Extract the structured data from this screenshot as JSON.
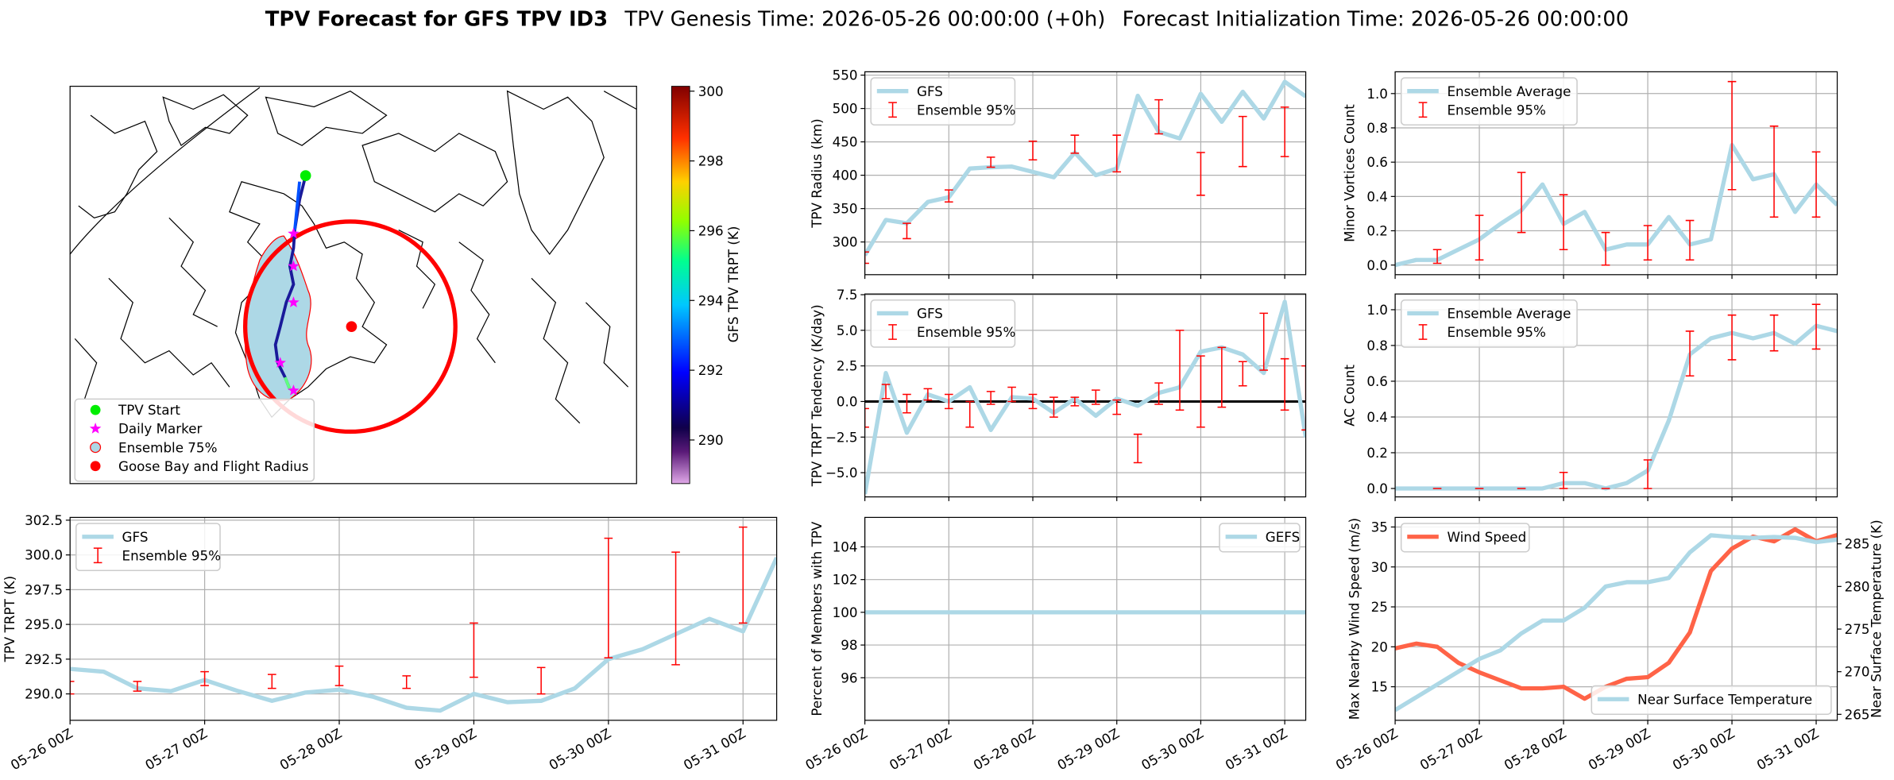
{
  "title": {
    "main": "TPV Forecast for GFS TPV ID3",
    "genesis": "TPV Genesis Time: 2026-05-26 00:00:00 (+0h)",
    "init": "Forecast Initialization Time: 2026-05-26 00:00:00"
  },
  "chart_data": [
    {
      "type": "map",
      "legend": "lower left",
      "items": [
        {
          "name": "TPV Start",
          "marker": "circle",
          "color": "#00ee00"
        },
        {
          "name": "Daily Marker",
          "marker": "star",
          "color": "#ff00ff"
        },
        {
          "name": "Ensemble 75%",
          "marker": "circle",
          "color": "#add8e6",
          "edgecolor": "#ff0000"
        },
        {
          "name": "Goose Bay and Flight Radius",
          "marker": "circle",
          "color": "#ff0000"
        }
      ],
      "colorbar": {
        "label": "GFS TPV TRPT (K)",
        "lim": [
          288.75,
          300.14
        ],
        "ticks": [
          290,
          292,
          294,
          296,
          298,
          300
        ]
      }
    },
    {
      "type": "line",
      "ylabel": "TPV Radius (km)",
      "grid": true,
      "legend": "upper left",
      "x": [
        0,
        6,
        12,
        18,
        24,
        30,
        36,
        42,
        48,
        54,
        60,
        66,
        72,
        78,
        84,
        90,
        96,
        102,
        108,
        114,
        120,
        126
      ],
      "xlim": [
        0,
        126
      ],
      "xticks": [
        0,
        24,
        48,
        72,
        96,
        120
      ],
      "ylim": [
        251,
        555
      ],
      "yticks": [
        300,
        350,
        400,
        450,
        500,
        550
      ],
      "series": [
        {
          "name": "GFS",
          "color": "#add8e6",
          "values": [
            280,
            333,
            328,
            360,
            367,
            410,
            412,
            413,
            405,
            397,
            434,
            400,
            410,
            519,
            465,
            455,
            522,
            480,
            525,
            485,
            540,
            518
          ]
        }
      ],
      "errorbars": {
        "name": "Ensemble 95%",
        "color": "#ff0000",
        "x": [
          0,
          12,
          24,
          36,
          48,
          60,
          72,
          84,
          96,
          108,
          120
        ],
        "low": [
          268,
          305,
          360,
          412,
          423,
          433,
          405,
          462,
          370,
          413,
          428
        ],
        "high": [
          285,
          328,
          378,
          427,
          451,
          460,
          460,
          513,
          434,
          488,
          502
        ]
      }
    },
    {
      "type": "line",
      "ylabel": "Minor Vortices Count",
      "grid": true,
      "legend": "upper left",
      "x": [
        0,
        6,
        12,
        18,
        24,
        30,
        36,
        42,
        48,
        54,
        60,
        66,
        72,
        78,
        84,
        90,
        96,
        102,
        108,
        114,
        120,
        126
      ],
      "xlim": [
        0,
        126
      ],
      "xticks": [
        0,
        24,
        48,
        72,
        96,
        120
      ],
      "ylim": [
        -0.056,
        1.127
      ],
      "yticks": [
        {
          "value": 0,
          "label": "0.0"
        },
        0.2,
        0.4,
        0.6,
        0.8,
        {
          "value": 1,
          "label": "1.0"
        }
      ],
      "series": [
        {
          "name": "Ensemble Average",
          "color": "#add8e6",
          "values": [
            0.0,
            0.03,
            0.03,
            0.09,
            0.15,
            0.24,
            0.32,
            0.47,
            0.24,
            0.31,
            0.09,
            0.12,
            0.12,
            0.28,
            0.12,
            0.15,
            0.7,
            0.5,
            0.53,
            0.31,
            0.47,
            0.35
          ]
        }
      ],
      "errorbars": {
        "name": "Ensemble 95%",
        "color": "#ff0000",
        "x": [
          12,
          24,
          36,
          48,
          60,
          72,
          84,
          96,
          108,
          120
        ],
        "low": [
          0.01,
          0.03,
          0.19,
          0.09,
          0.0,
          0.03,
          0.03,
          0.44,
          0.28,
          0.28
        ],
        "high": [
          0.09,
          0.29,
          0.54,
          0.41,
          0.19,
          0.23,
          0.26,
          1.07,
          0.81,
          0.66
        ]
      }
    },
    {
      "type": "line",
      "ylabel": "TPV TRPT Tendency (K/day)",
      "grid": true,
      "legend": "upper left",
      "hline": 0,
      "x": [
        0,
        6,
        12,
        18,
        24,
        30,
        36,
        42,
        48,
        54,
        60,
        66,
        72,
        78,
        84,
        90,
        96,
        102,
        108,
        114,
        120,
        126
      ],
      "xlim": [
        0,
        126
      ],
      "xticks": [
        0,
        24,
        48,
        72,
        96,
        120
      ],
      "ylim": [
        -6.7,
        7.55
      ],
      "yticks": [
        {
          "value": -5,
          "label": "−5.0"
        },
        {
          "value": -2.5,
          "label": "−2.5"
        },
        {
          "value": 0,
          "label": "0.0"
        },
        2.5,
        {
          "value": 5,
          "label": "5.0"
        },
        7.5
      ],
      "series": [
        {
          "name": "GFS",
          "color": "#add8e6",
          "values": [
            -6.5,
            2.0,
            -2.2,
            0.5,
            0.0,
            1.0,
            -2.0,
            0.3,
            0.2,
            -0.8,
            0.2,
            -1.0,
            0.2,
            -0.3,
            0.6,
            1.0,
            3.5,
            3.8,
            3.3,
            2.0,
            7.0,
            -2.5
          ]
        }
      ],
      "errorbars": {
        "name": "Ensemble 95%",
        "color": "#ff0000",
        "x": [
          0,
          6,
          12,
          18,
          24,
          30,
          36,
          42,
          48,
          54,
          60,
          66,
          72,
          78,
          84,
          90,
          96,
          102,
          108,
          114,
          120,
          126
        ],
        "low": [
          -1.8,
          0.2,
          -0.8,
          0.1,
          -0.5,
          -1.8,
          -0.2,
          0.0,
          -0.5,
          -1.1,
          -0.3,
          -0.2,
          -0.9,
          -4.3,
          -0.2,
          -0.6,
          -1.8,
          -0.4,
          1.1,
          2.2,
          -0.6,
          -2.0
        ],
        "high": [
          -0.5,
          1.2,
          0.5,
          0.9,
          0.5,
          0.0,
          0.7,
          1.0,
          0.5,
          0.3,
          0.3,
          0.8,
          0.1,
          -2.3,
          1.3,
          5.0,
          3.2,
          3.8,
          2.8,
          6.2,
          3.0,
          2.5
        ]
      }
    },
    {
      "type": "line",
      "ylabel": "AC Count",
      "grid": true,
      "legend": "upper left",
      "x": [
        0,
        6,
        12,
        18,
        24,
        30,
        36,
        42,
        48,
        54,
        60,
        66,
        72,
        78,
        84,
        90,
        96,
        102,
        108,
        114,
        120,
        126
      ],
      "xlim": [
        0,
        126
      ],
      "xticks": [
        0,
        24,
        48,
        72,
        96,
        120
      ],
      "ylim": [
        -0.047,
        1.088
      ],
      "yticks": [
        {
          "value": 0,
          "label": "0.0"
        },
        0.2,
        0.4,
        0.6,
        0.8,
        {
          "value": 1,
          "label": "1.0"
        }
      ],
      "series": [
        {
          "name": "Ensemble Average",
          "color": "#add8e6",
          "values": [
            0,
            0,
            0,
            0,
            0,
            0,
            0,
            0,
            0.03,
            0.03,
            0,
            0.03,
            0.1,
            0.38,
            0.75,
            0.84,
            0.87,
            0.84,
            0.87,
            0.81,
            0.91,
            0.88
          ]
        }
      ],
      "errorbars": {
        "name": "Ensemble 95%",
        "color": "#ff0000",
        "x": [
          12,
          24,
          36,
          48,
          60,
          72,
          84,
          96,
          108,
          120
        ],
        "low": [
          0,
          0,
          0,
          0,
          0,
          0,
          0.63,
          0.72,
          0.77,
          0.78
        ],
        "high": [
          0,
          0,
          0,
          0.09,
          0,
          0.16,
          0.88,
          0.97,
          0.97,
          1.03
        ]
      }
    },
    {
      "type": "line",
      "ylabel": "TPV TRPT (K)",
      "grid": true,
      "legend": "upper left",
      "x": [
        0,
        6,
        12,
        18,
        24,
        30,
        36,
        42,
        48,
        54,
        60,
        66,
        72,
        78,
        84,
        90,
        96,
        102,
        108,
        114,
        120,
        126
      ],
      "xlim": [
        0,
        126
      ],
      "xticks": [
        {
          "value": 0,
          "label": "05-26 00Z"
        },
        {
          "value": 24,
          "label": "05-27 00Z"
        },
        {
          "value": 48,
          "label": "05-28 00Z"
        },
        {
          "value": 72,
          "label": "05-29 00Z"
        },
        {
          "value": 96,
          "label": "05-30 00Z"
        },
        {
          "value": 120,
          "label": "05-31 00Z"
        }
      ],
      "ylim": [
        288.1,
        302.7
      ],
      "yticks": [
        {
          "value": 290,
          "label": "290.0"
        },
        292.5,
        {
          "value": 295,
          "label": "295.0"
        },
        297.5,
        {
          "value": 300,
          "label": "300.0"
        },
        302.5
      ],
      "series": [
        {
          "name": "GFS",
          "color": "#add8e6",
          "values": [
            291.8,
            291.6,
            290.4,
            290.2,
            291.0,
            290.2,
            289.5,
            290.1,
            290.3,
            289.8,
            289.0,
            288.8,
            290.0,
            289.4,
            289.5,
            290.4,
            292.5,
            293.2,
            294.3,
            295.4,
            294.5,
            299.8
          ]
        }
      ],
      "errorbars": {
        "name": "Ensemble 95%",
        "color": "#ff0000",
        "x": [
          0,
          12,
          24,
          36,
          48,
          60,
          72,
          84,
          96,
          108,
          120
        ],
        "low": [
          290.0,
          290.2,
          290.6,
          290.4,
          290.6,
          290.4,
          291.2,
          290.0,
          292.6,
          292.1,
          295.1
        ],
        "high": [
          290.9,
          290.9,
          291.6,
          291.4,
          292.0,
          291.3,
          295.1,
          291.9,
          301.2,
          300.2,
          302.0
        ]
      }
    },
    {
      "type": "line",
      "ylabel": "Percent of Members with TPV",
      "grid": true,
      "legend": "upper right",
      "x": [
        0,
        6,
        12,
        18,
        24,
        30,
        36,
        42,
        48,
        54,
        60,
        66,
        72,
        78,
        84,
        90,
        96,
        102,
        108,
        114,
        120,
        126
      ],
      "xlim": [
        0,
        126
      ],
      "xticks": [
        {
          "value": 0,
          "label": "05-26 00Z"
        },
        {
          "value": 24,
          "label": "05-27 00Z"
        },
        {
          "value": 48,
          "label": "05-28 00Z"
        },
        {
          "value": 72,
          "label": "05-29 00Z"
        },
        {
          "value": 96,
          "label": "05-30 00Z"
        },
        {
          "value": 120,
          "label": "05-31 00Z"
        }
      ],
      "ylim": [
        93.4,
        105.8
      ],
      "yticks": [
        96,
        98,
        100,
        102,
        104
      ],
      "series": [
        {
          "name": "GEFS",
          "color": "#add8e6",
          "values": [
            100,
            100,
            100,
            100,
            100,
            100,
            100,
            100,
            100,
            100,
            100,
            100,
            100,
            100,
            100,
            100,
            100,
            100,
            100,
            100,
            100,
            100
          ]
        }
      ]
    },
    {
      "type": "line",
      "ylabel": "Max Nearby Wind Speed (m/s)",
      "ylabel_color": "#ff6347",
      "y2label": "Near Surface Temperature (K)",
      "y2label_color": "#4169e1",
      "grid": true,
      "legend": "upper left",
      "x": [
        0,
        6,
        12,
        18,
        24,
        30,
        36,
        42,
        48,
        54,
        60,
        66,
        72,
        78,
        84,
        90,
        96,
        102,
        108,
        114,
        120,
        126
      ],
      "xlim": [
        0,
        126
      ],
      "xticks": [
        {
          "value": 0,
          "label": "05-26 00Z"
        },
        {
          "value": 24,
          "label": "05-27 00Z"
        },
        {
          "value": 48,
          "label": "05-28 00Z"
        },
        {
          "value": 72,
          "label": "05-29 00Z"
        },
        {
          "value": 96,
          "label": "05-30 00Z"
        },
        {
          "value": 120,
          "label": "05-31 00Z"
        }
      ],
      "ylim": [
        10.8,
        36.2
      ],
      "yticks": [
        15,
        20,
        25,
        30,
        35
      ],
      "y2lim": [
        264.3,
        288.1
      ],
      "y2ticks": [
        265,
        270,
        275,
        280,
        285
      ],
      "series": [
        {
          "name": "Wind Speed",
          "color": "#ff6347",
          "values": [
            19.8,
            20.4,
            20.0,
            18.0,
            16.8,
            15.8,
            14.8,
            14.8,
            15.0,
            13.5,
            15.0,
            16.0,
            16.2,
            18.0,
            21.8,
            29.5,
            32.3,
            33.8,
            33.2,
            34.7,
            33.2,
            34.0
          ]
        },
        {
          "name": "Near Surface Temperature",
          "color": "#add8e6",
          "axis": "y2",
          "legend": "lower right",
          "values": [
            265.5,
            267.0,
            268.5,
            270.0,
            271.5,
            272.5,
            274.5,
            276.0,
            276.0,
            277.5,
            280.0,
            280.5,
            280.5,
            281.0,
            284.0,
            286.0,
            285.8,
            285.7,
            285.8,
            285.7,
            285.2,
            285.5
          ]
        }
      ]
    }
  ]
}
